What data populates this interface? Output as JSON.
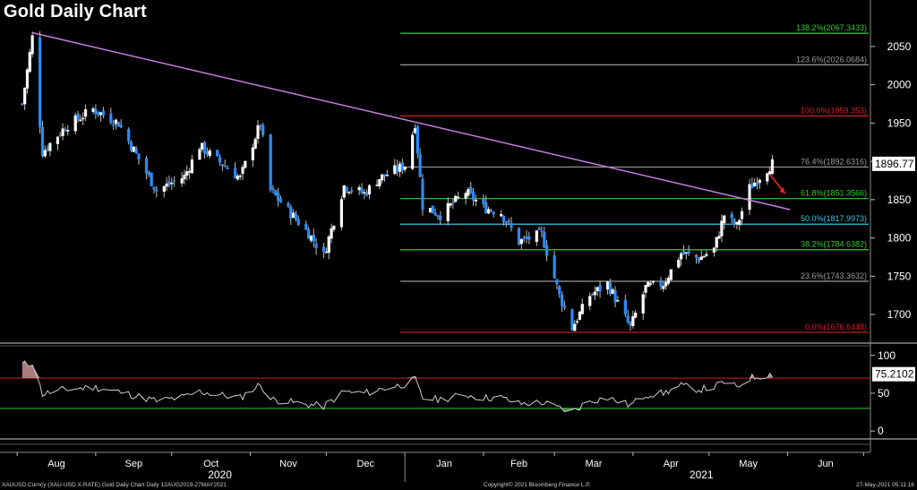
{
  "title": "Gold Daily Chart",
  "footer": {
    "left": "XAUUSD Curncy (XAU-USD X-RATE) Gold Daily Chart  Daily 12AUG2019-27MAY2021",
    "center": "Copyright© 2021 Bloomberg Finance L.P.",
    "right": "27-May-2021 05:11:16"
  },
  "colors": {
    "background": "#000000",
    "candle": "#2a8cff",
    "trendline": "#c77de0",
    "fib_green": "#35c935",
    "fib_grey": "#9a9a9a",
    "fib_red": "#d12020",
    "fib_cyan": "#39c6e6",
    "rsi_line": "#cfcfcf",
    "arrow": "#ff2020"
  },
  "chart_data": [
    {
      "type": "candlestick",
      "title": "Gold Daily Chart",
      "ylim": [
        1665,
        2085
      ],
      "y_ticks": [
        1700,
        1750,
        1800,
        1850,
        1900,
        1950,
        2000,
        2050
      ],
      "x_month_labels": [
        "Aug",
        "Sep",
        "Oct",
        "Nov",
        "Dec",
        "Jan",
        "Feb",
        "Mar",
        "Apr",
        "May",
        "Jun"
      ],
      "year_labels": [
        "2020",
        "2021"
      ],
      "last_price": "1896.77",
      "close_path": [
        {
          "date": "2020-08-03",
          "close": 1975
        },
        {
          "date": "2020-08-07",
          "close": 2062
        },
        {
          "date": "2020-08-11",
          "close": 1912
        },
        {
          "date": "2020-08-20",
          "close": 1945
        },
        {
          "date": "2020-08-31",
          "close": 1968
        },
        {
          "date": "2020-09-10",
          "close": 1950
        },
        {
          "date": "2020-09-25",
          "close": 1862
        },
        {
          "date": "2020-10-06",
          "close": 1880
        },
        {
          "date": "2020-10-12",
          "close": 1920
        },
        {
          "date": "2020-10-28",
          "close": 1878
        },
        {
          "date": "2020-11-05",
          "close": 1950
        },
        {
          "date": "2020-11-09",
          "close": 1862
        },
        {
          "date": "2020-11-24",
          "close": 1806
        },
        {
          "date": "2020-11-30",
          "close": 1777
        },
        {
          "date": "2020-12-08",
          "close": 1868
        },
        {
          "date": "2020-12-16",
          "close": 1858
        },
        {
          "date": "2020-12-22",
          "close": 1878
        },
        {
          "date": "2021-01-01",
          "close": 1895
        },
        {
          "date": "2021-01-05",
          "close": 1950
        },
        {
          "date": "2021-01-08",
          "close": 1842
        },
        {
          "date": "2021-01-15",
          "close": 1830
        },
        {
          "date": "2021-01-25",
          "close": 1860
        },
        {
          "date": "2021-02-01",
          "close": 1840
        },
        {
          "date": "2021-02-08",
          "close": 1833
        },
        {
          "date": "2021-02-15",
          "close": 1795
        },
        {
          "date": "2021-02-24",
          "close": 1805
        },
        {
          "date": "2021-03-03",
          "close": 1725
        },
        {
          "date": "2021-03-08",
          "close": 1683
        },
        {
          "date": "2021-03-15",
          "close": 1725
        },
        {
          "date": "2021-03-22",
          "close": 1740
        },
        {
          "date": "2021-03-31",
          "close": 1683
        },
        {
          "date": "2021-04-06",
          "close": 1735
        },
        {
          "date": "2021-04-13",
          "close": 1740
        },
        {
          "date": "2021-04-20",
          "close": 1780
        },
        {
          "date": "2021-04-27",
          "close": 1773
        },
        {
          "date": "2021-05-03",
          "close": 1785
        },
        {
          "date": "2021-05-07",
          "close": 1830
        },
        {
          "date": "2021-05-12",
          "close": 1815
        },
        {
          "date": "2021-05-17",
          "close": 1865
        },
        {
          "date": "2021-05-21",
          "close": 1880
        },
        {
          "date": "2021-05-26",
          "close": 1897
        }
      ],
      "trendline": {
        "start": {
          "date": "2020-08-07",
          "value": 2068
        },
        "end": {
          "date": "2021-06-02",
          "value": 1837
        }
      },
      "fibonacci_levels": [
        {
          "label": "138.2%(2067.3433)",
          "value": 2067.3433,
          "color": "#35c935"
        },
        {
          "label": "123.6%(2026.0684)",
          "value": 2026.0684,
          "color": "#9a9a9a"
        },
        {
          "label": "100.0%(1959.353)",
          "value": 1959.353,
          "color": "#d12020"
        },
        {
          "label": "76.4%(1892.6316)",
          "value": 1892.6316,
          "color": "#9a9a9a"
        },
        {
          "label": "61.8%(1851.3566)",
          "value": 1851.3566,
          "color": "#35c935"
        },
        {
          "label": "50.0%(1817.9973)",
          "value": 1817.9973,
          "color": "#39c6e6"
        },
        {
          "label": "38.2%(1784.6382)",
          "value": 1784.6382,
          "color": "#35c935"
        },
        {
          "label": "23.6%(1743.3632)",
          "value": 1743.3632,
          "color": "#9a9a9a"
        },
        {
          "label": "0.0%(1676.6448)",
          "value": 1676.6448,
          "color": "#d12020"
        }
      ]
    },
    {
      "type": "line",
      "ylim": [
        -8,
        108
      ],
      "y_ticks": [
        0,
        50,
        100
      ],
      "reference_lines": [
        70,
        30
      ],
      "last_value": "75.2102",
      "values": [
        {
          "date": "2020-08-03",
          "value": 88
        },
        {
          "date": "2020-08-07",
          "value": 90
        },
        {
          "date": "2020-08-11",
          "value": 49
        },
        {
          "date": "2020-08-20",
          "value": 55
        },
        {
          "date": "2020-08-31",
          "value": 58
        },
        {
          "date": "2020-09-10",
          "value": 52
        },
        {
          "date": "2020-09-25",
          "value": 40
        },
        {
          "date": "2020-10-06",
          "value": 45
        },
        {
          "date": "2020-10-12",
          "value": 52
        },
        {
          "date": "2020-10-28",
          "value": 44
        },
        {
          "date": "2020-11-05",
          "value": 62
        },
        {
          "date": "2020-11-09",
          "value": 42
        },
        {
          "date": "2020-11-24",
          "value": 35
        },
        {
          "date": "2020-11-30",
          "value": 33
        },
        {
          "date": "2020-12-08",
          "value": 52
        },
        {
          "date": "2020-12-16",
          "value": 50
        },
        {
          "date": "2020-12-22",
          "value": 55
        },
        {
          "date": "2021-01-01",
          "value": 62
        },
        {
          "date": "2021-01-05",
          "value": 68
        },
        {
          "date": "2021-01-08",
          "value": 43
        },
        {
          "date": "2021-01-15",
          "value": 42
        },
        {
          "date": "2021-01-25",
          "value": 48
        },
        {
          "date": "2021-02-01",
          "value": 44
        },
        {
          "date": "2021-02-08",
          "value": 44
        },
        {
          "date": "2021-02-15",
          "value": 36
        },
        {
          "date": "2021-02-24",
          "value": 38
        },
        {
          "date": "2021-03-03",
          "value": 30
        },
        {
          "date": "2021-03-08",
          "value": 26
        },
        {
          "date": "2021-03-15",
          "value": 40
        },
        {
          "date": "2021-03-22",
          "value": 44
        },
        {
          "date": "2021-03-31",
          "value": 34
        },
        {
          "date": "2021-04-06",
          "value": 48
        },
        {
          "date": "2021-04-13",
          "value": 50
        },
        {
          "date": "2021-04-20",
          "value": 60
        },
        {
          "date": "2021-04-27",
          "value": 55
        },
        {
          "date": "2021-05-03",
          "value": 58
        },
        {
          "date": "2021-05-07",
          "value": 65
        },
        {
          "date": "2021-05-12",
          "value": 58
        },
        {
          "date": "2021-05-17",
          "value": 70
        },
        {
          "date": "2021-05-21",
          "value": 73
        },
        {
          "date": "2021-05-26",
          "value": 75.2
        }
      ]
    }
  ]
}
